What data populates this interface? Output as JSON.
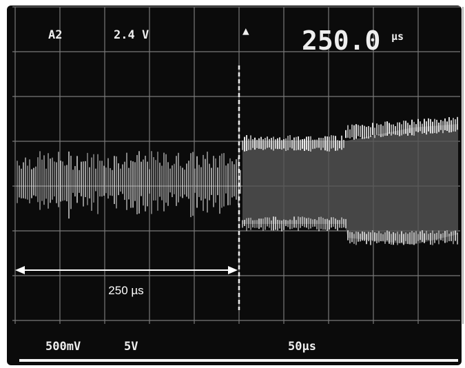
{
  "readout_top": {
    "channel": "A2",
    "level": "2.4 V",
    "delay": "250.0",
    "delay_unit": "µs"
  },
  "annotation": "250 µs",
  "readout_bottom": {
    "ch1_scale": "500mV",
    "ch2_scale": "5V",
    "timebase": "50µs"
  }
}
